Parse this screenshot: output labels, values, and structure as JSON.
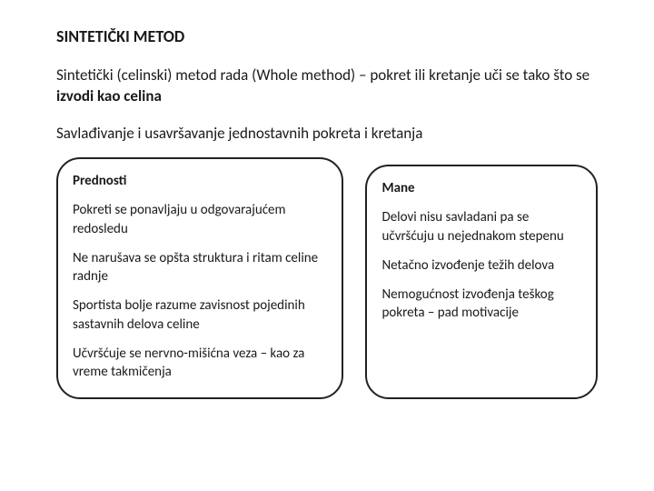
{
  "title": "SINTETIČKI METOD",
  "intro_pre": "Sintetički (celinski) metod rada (Whole method) – pokret ili kretanje uči se tako što se ",
  "intro_bold": "izvodi kao celina",
  "subintro": "Savlađivanje i usavršavanje jednostavnih pokreta i kretanja",
  "left": {
    "title": "Prednosti",
    "p1": "Pokreti se ponavljaju u odgovarajućem redosledu",
    "p2": "Ne narušava se opšta struktura i ritam celine radnje",
    "p3": "Sportista bolje razume zavisnost pojedinih sastavnih delova celine",
    "p4": "Učvršćuje se nervno-mišićna  veza – kao za vreme takmičenja"
  },
  "right": {
    "title": "Mane",
    "p1": "Delovi nisu savladani pa se učvršćuju u nejednakom stepenu",
    "p2": "Netačno izvođenje težih delova",
    "p3": "Nemogućnost izvođenja teškog pokreta – pad motivacije"
  }
}
